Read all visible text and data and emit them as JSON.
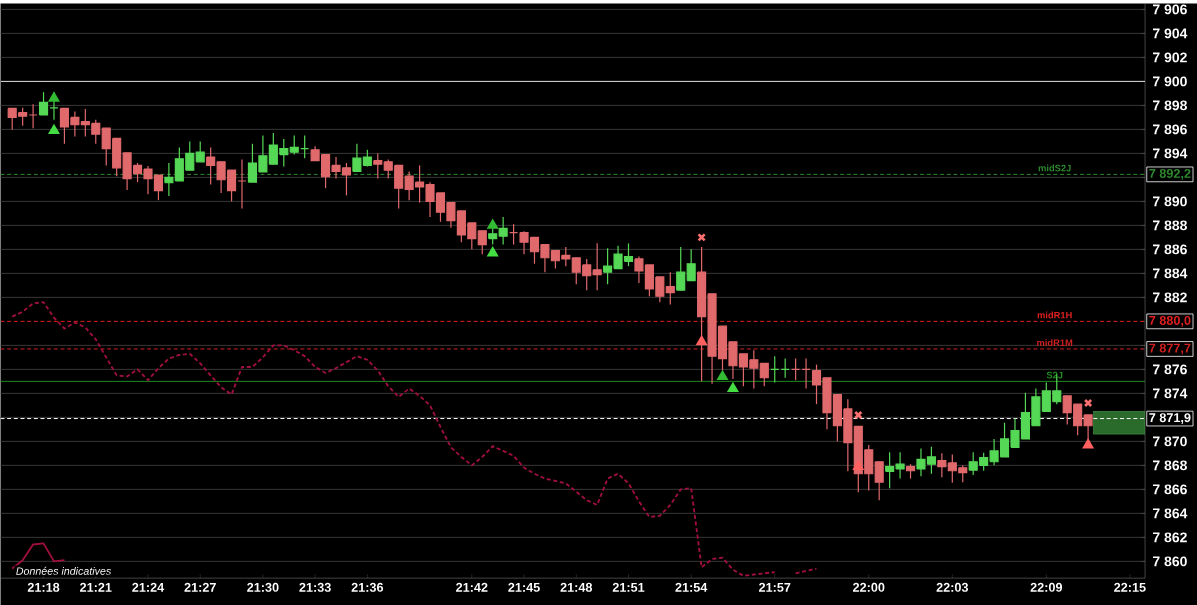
{
  "chart_data": {
    "type": "candlestick",
    "categories": [
      null,
      null,
      null,
      "21:18",
      null,
      null,
      null,
      null,
      "21:21",
      null,
      null,
      null,
      null,
      "21:24",
      null,
      null,
      null,
      null,
      "21:27",
      null,
      null,
      null,
      null,
      null,
      "21:30",
      null,
      null,
      null,
      null,
      "21:33",
      null,
      null,
      null,
      null,
      "21:36",
      null,
      null,
      null,
      null,
      null,
      null,
      null,
      null,
      null,
      "21:42",
      null,
      null,
      null,
      null,
      "21:45",
      null,
      null,
      null,
      null,
      "21:48",
      null,
      null,
      null,
      null,
      "21:51",
      null,
      null,
      null,
      null,
      null,
      "21:54",
      null,
      null,
      null,
      null,
      null,
      null,
      null,
      "21:57",
      null,
      null,
      null,
      null,
      null,
      null,
      null,
      null,
      "22:00",
      null,
      null,
      null,
      null,
      null,
      null,
      null,
      "22:03",
      null,
      null,
      null,
      null,
      null,
      null,
      null,
      null,
      "22:09",
      null,
      null,
      null,
      null,
      null,
      null,
      null,
      "22:15"
    ],
    "ohlc": [
      [
        7897.75,
        7897.75,
        7896.0,
        7897.0
      ],
      [
        7897.4,
        7897.8,
        7896.3,
        7897.1
      ],
      [
        7897.2,
        7898.1,
        7896.1,
        7897.2
      ],
      [
        7897.2,
        7899.1,
        7897.2,
        7898.25
      ],
      [
        7897.8,
        7898.6,
        7896.8,
        7897.8
      ],
      [
        7897.75,
        7897.75,
        7894.8,
        7896.2
      ],
      [
        7897.0,
        7897.5,
        7895.4,
        7896.4
      ],
      [
        7896.65,
        7897.7,
        7895.4,
        7896.4
      ],
      [
        7896.5,
        7896.8,
        7894.8,
        7895.6
      ],
      [
        7896.1,
        7896.1,
        7893.0,
        7894.4
      ],
      [
        7895.25,
        7895.25,
        7892.1,
        7892.8
      ],
      [
        7894.05,
        7894.05,
        7890.95,
        7891.9
      ],
      [
        7893.0,
        7893.2,
        7891.6,
        7892.3
      ],
      [
        7892.7,
        7892.95,
        7890.6,
        7891.9
      ],
      [
        7892.2,
        7892.2,
        7890.1,
        7890.9
      ],
      [
        7891.55,
        7893.2,
        7890.45,
        7892.0
      ],
      [
        7891.7,
        7894.5,
        7891.7,
        7893.55
      ],
      [
        7892.6,
        7895.0,
        7892.6,
        7894.0
      ],
      [
        7893.3,
        7895.0,
        7893.3,
        7894.1
      ],
      [
        7893.7,
        7894.5,
        7891.4,
        7893.0
      ],
      [
        7893.3,
        7893.3,
        7890.7,
        7891.8
      ],
      [
        7892.6,
        7892.6,
        7890.0,
        7890.9
      ],
      [
        7891.7,
        7893.5,
        7889.4,
        7891.7
      ],
      [
        7891.6,
        7894.8,
        7891.6,
        7893.2
      ],
      [
        7892.45,
        7895.5,
        7892.45,
        7893.8
      ],
      [
        7893.1,
        7895.7,
        7893.1,
        7894.7
      ],
      [
        7893.9,
        7895.2,
        7892.9,
        7894.4
      ],
      [
        7894.1,
        7895.5,
        7893.9,
        7894.5
      ],
      [
        7894.4,
        7895.5,
        7893.6,
        7894.4
      ],
      [
        7894.3,
        7894.6,
        7893.4,
        7893.4
      ],
      [
        7893.9,
        7893.9,
        7891.1,
        7892.05
      ],
      [
        7893.0,
        7893.7,
        7891.9,
        7892.5
      ],
      [
        7892.8,
        7893.2,
        7890.5,
        7892.2
      ],
      [
        7892.5,
        7894.8,
        7892.5,
        7893.6
      ],
      [
        7893.0,
        7894.3,
        7892.9,
        7893.7
      ],
      [
        7893.4,
        7894.0,
        7891.9,
        7893.1
      ],
      [
        7893.3,
        7893.5,
        7891.9,
        7892.6
      ],
      [
        7893.0,
        7893.0,
        7889.4,
        7891.1
      ],
      [
        7892.1,
        7892.5,
        7890.1,
        7891.0
      ],
      [
        7891.6,
        7893.0,
        7889.9,
        7891.2
      ],
      [
        7891.4,
        7891.6,
        7888.7,
        7890.0
      ],
      [
        7890.7,
        7890.7,
        7888.3,
        7889.1
      ],
      [
        7889.9,
        7889.9,
        7887.8,
        7888.4
      ],
      [
        7889.2,
        7889.2,
        7886.6,
        7887.2
      ],
      [
        7888.2,
        7888.2,
        7886.0,
        7886.9
      ],
      [
        7887.55,
        7887.55,
        7885.6,
        7886.4
      ],
      [
        7886.9,
        7888.2,
        7886.4,
        7887.3
      ],
      [
        7887.1,
        7888.7,
        7886.4,
        7887.75
      ],
      [
        7887.4,
        7888.1,
        7886.4,
        7887.4
      ],
      [
        7887.4,
        7887.5,
        7885.6,
        7886.6
      ],
      [
        7887.0,
        7887.0,
        7884.8,
        7885.8
      ],
      [
        7886.4,
        7886.4,
        7884.1,
        7885.3
      ],
      [
        7885.9,
        7885.9,
        7884.4,
        7885.05
      ],
      [
        7885.5,
        7886.2,
        7884.6,
        7885.2
      ],
      [
        7885.3,
        7885.3,
        7883.1,
        7884.1
      ],
      [
        7884.7,
        7885.2,
        7882.6,
        7883.8
      ],
      [
        7884.3,
        7886.5,
        7882.6,
        7883.9
      ],
      [
        7884.1,
        7886.1,
        7883.1,
        7884.6
      ],
      [
        7884.4,
        7886.3,
        7884.4,
        7885.6
      ],
      [
        7885.0,
        7886.5,
        7884.6,
        7885.4
      ],
      [
        7885.2,
        7885.4,
        7883.2,
        7884.2
      ],
      [
        7884.7,
        7884.7,
        7882.1,
        7882.7
      ],
      [
        7883.7,
        7883.7,
        7881.6,
        7882.1
      ],
      [
        7882.9,
        7884.1,
        7881.4,
        7882.4
      ],
      [
        7882.6,
        7886.2,
        7882.6,
        7884.1
      ],
      [
        7883.4,
        7886.0,
        7883.4,
        7884.8
      ],
      [
        7884.1,
        7886.2,
        7875.0,
        7880.4
      ],
      [
        7882.3,
        7882.3,
        7874.8,
        7877.1
      ],
      [
        7879.6,
        7879.6,
        7875.9,
        7876.9
      ],
      [
        7878.3,
        7878.3,
        7875.2,
        7876.3
      ],
      [
        7877.3,
        7877.3,
        7874.6,
        7876.2
      ],
      [
        7876.8,
        7877.6,
        7874.4,
        7876.1
      ],
      [
        7876.5,
        7876.5,
        7874.6,
        7875.3
      ],
      [
        7876.0,
        7877.1,
        7874.9,
        7876.0
      ],
      [
        7876.0,
        7876.9,
        7875.3,
        7876.0
      ],
      [
        7876.0,
        7876.9,
        7875.1,
        7876.0
      ],
      [
        7876.0,
        7876.9,
        7874.4,
        7876.0
      ],
      [
        7875.9,
        7876.4,
        7873.1,
        7874.7
      ],
      [
        7875.3,
        7875.3,
        7871.0,
        7872.4
      ],
      [
        7873.9,
        7873.9,
        7870.0,
        7871.3
      ],
      [
        7872.7,
        7873.5,
        7867.5,
        7869.9
      ],
      [
        7871.25,
        7871.25,
        7865.75,
        7867.3
      ],
      [
        7869.3,
        7869.7,
        7865.9,
        7867.3
      ],
      [
        7868.3,
        7868.3,
        7865.1,
        7866.6
      ],
      [
        7867.5,
        7869.1,
        7866.1,
        7867.9
      ],
      [
        7867.7,
        7869.1,
        7866.9,
        7868.1
      ],
      [
        7867.9,
        7868.1,
        7866.9,
        7867.55
      ],
      [
        7867.7,
        7869.4,
        7867.1,
        7868.5
      ],
      [
        7868.1,
        7869.55,
        7867.3,
        7868.7
      ],
      [
        7868.4,
        7869.0,
        7867.0,
        7867.9
      ],
      [
        7868.2,
        7868.9,
        7866.55,
        7867.55
      ],
      [
        7867.8,
        7868.0,
        7866.6,
        7867.4
      ],
      [
        7867.6,
        7869.1,
        7867.2,
        7868.3
      ],
      [
        7868.0,
        7869.05,
        7867.55,
        7868.65
      ],
      [
        7868.3,
        7870.2,
        7868.0,
        7869.2
      ],
      [
        7868.7,
        7871.55,
        7868.7,
        7870.2
      ],
      [
        7869.5,
        7871.9,
        7869.5,
        7870.9
      ],
      [
        7870.2,
        7874.05,
        7870.2,
        7872.4
      ],
      [
        7871.3,
        7874.4,
        7871.3,
        7873.7
      ],
      [
        7872.5,
        7874.9,
        7872.5,
        7874.2
      ],
      [
        7873.3,
        7875.6,
        7873.1,
        7874.2
      ],
      [
        7873.8,
        7873.8,
        7871.4,
        7872.4
      ],
      [
        7873.1,
        7873.1,
        7870.5,
        7871.3
      ],
      [
        7872.2,
        7872.2,
        7870.1,
        7871.3
      ],
      null,
      null,
      null,
      null
    ],
    "colors": [
      "#e0696c",
      "#e0696c",
      "#e0696c",
      "#55d855",
      "#55d855",
      "#e0696c",
      "#e0696c",
      "#e0696c",
      "#e0696c",
      "#e0696c",
      "#e0696c",
      "#e0696c",
      "#e0696c",
      "#e0696c",
      "#e0696c",
      "#55d855",
      "#55d855",
      "#55d855",
      "#55d855",
      "#e0696c",
      "#e0696c",
      "#e0696c",
      "#e0696c",
      "#55d855",
      "#55d855",
      "#55d855",
      "#55d855",
      "#55d855",
      "#55d855",
      "#e0696c",
      "#e0696c",
      "#e0696c",
      "#e0696c",
      "#55d855",
      "#55d855",
      "#e0696c",
      "#e0696c",
      "#e0696c",
      "#e0696c",
      "#e0696c",
      "#e0696c",
      "#e0696c",
      "#e0696c",
      "#e0696c",
      "#e0696c",
      "#e0696c",
      "#55d855",
      "#55d855",
      "#e0696c",
      "#e0696c",
      "#e0696c",
      "#e0696c",
      "#e0696c",
      "#e0696c",
      "#e0696c",
      "#e0696c",
      "#e0696c",
      "#55d855",
      "#55d855",
      "#55d855",
      "#e0696c",
      "#e0696c",
      "#e0696c",
      "#e0696c",
      "#55d855",
      "#55d855",
      "#e0696c",
      "#e0696c",
      "#e0696c",
      "#e0696c",
      "#e0696c",
      "#e0696c",
      "#e0696c",
      "#55d855",
      "#55d855",
      "#e0696c",
      "#e0696c",
      "#e0696c",
      "#e0696c",
      "#e0696c",
      "#e0696c",
      "#e0696c",
      "#e0696c",
      "#e0696c",
      "#55d855",
      "#55d855",
      "#e0696c",
      "#55d855",
      "#55d855",
      "#e0696c",
      "#e0696c",
      "#e0696c",
      "#55d855",
      "#55d855",
      "#55d855",
      "#55d855",
      "#55d855",
      "#55d855",
      "#55d855",
      "#55d855",
      "#55d855",
      "#e0696c",
      "#e0696c",
      "#e0696c",
      null,
      null,
      null,
      null
    ],
    "ylim": [
      7858.6,
      7906.5
    ],
    "yticks": [
      {
        "value": 7860,
        "label": "7 860"
      },
      {
        "value": 7862,
        "label": "7 862"
      },
      {
        "value": 7864,
        "label": "7 864"
      },
      {
        "value": 7866,
        "label": "7 866"
      },
      {
        "value": 7868,
        "label": "7 868"
      },
      {
        "value": 7870,
        "label": "7 870"
      },
      {
        "value": 7871.9,
        "label": "7 871,9"
      },
      {
        "value": 7872,
        "label": null
      },
      {
        "value": 7874,
        "label": "7 874"
      },
      {
        "value": 7876,
        "label": "7 876"
      },
      {
        "value": 7877.7,
        "label": "7 877,7"
      },
      {
        "value": 7878,
        "label": null
      },
      {
        "value": 7880.0,
        "label": "7 880,0"
      },
      {
        "value": 7882,
        "label": "7 882"
      },
      {
        "value": 7884,
        "label": "7 884"
      },
      {
        "value": 7886,
        "label": "7 886"
      },
      {
        "value": 7888,
        "label": "7 888"
      },
      {
        "value": 7890,
        "label": "7 890"
      },
      {
        "value": 7892,
        "label": null
      },
      {
        "value": 7892.25,
        "label": "7 892,2"
      },
      {
        "value": 7894,
        "label": "7 894"
      },
      {
        "value": 7896,
        "label": "7 896"
      },
      {
        "value": 7898,
        "label": "7 898"
      },
      {
        "value": 7900,
        "label": "7 900"
      },
      {
        "value": 7902,
        "label": "7 902"
      },
      {
        "value": 7904,
        "label": "7 904"
      },
      {
        "value": 7906,
        "label": "7 906"
      }
    ],
    "grid": "y",
    "ref_lines": [
      {
        "axis": "y",
        "value": 7900,
        "color": "#e0e0e0",
        "line_style": "solid"
      },
      {
        "axis": "y",
        "value": 7892.25,
        "label": "midS2J",
        "color": "#2e8a2e",
        "line_style": "dashed"
      },
      {
        "axis": "y",
        "value": 7880.0,
        "label": "midR1H",
        "color": "#e02020",
        "line_style": "dashed"
      },
      {
        "axis": "y",
        "value": 7877.7,
        "label": "midR1M",
        "color": "#d02020",
        "line_style": "dashed"
      },
      {
        "axis": "y",
        "value": 7875.0,
        "label": "S2J",
        "color": "#1f8a1f",
        "line_style": "solid"
      },
      {
        "axis": "y",
        "value": 7871.9,
        "color": "#ffffff",
        "line_style": "dashed"
      }
    ],
    "bands": [
      {
        "axis": "y",
        "from": 7870.6,
        "to": 7872.5,
        "color": "#2a6a2a"
      }
    ],
    "annotations": [
      "Données indicatives"
    ],
    "series": [
      {
        "type": "line",
        "color": "#a0103c",
        "line_style": "dashed",
        "values": [
          7880.4,
          7880.8,
          7881.5,
          7881.6,
          7880.3,
          7879.4,
          7879.9,
          7879.5,
          7878.5,
          7877.0,
          7875.5,
          7875.4,
          7876.0,
          7875.1,
          7876.1,
          7876.9,
          7877.2,
          7877.3,
          7876.5,
          7875.5,
          7874.5,
          7873.9,
          7876.2,
          7876.2,
          7877.0,
          7878.0,
          7878.0,
          7877.6,
          7877.1,
          7876.2,
          7875.7,
          7876.1,
          7876.6,
          7877.1,
          7876.8,
          7875.9,
          7874.6,
          7873.7,
          7874.4,
          7873.8,
          7873.0,
          7871.2,
          7869.5,
          7868.7,
          7868.0,
          7868.7,
          7869.6,
          7869.2,
          7868.8,
          7867.8,
          7867.3,
          7866.9,
          7866.7,
          7866.5,
          7865.8,
          7865.1,
          7864.7,
          7866.9,
          7867.3,
          7866.5,
          7865.0,
          7863.7,
          7863.8,
          7864.7,
          7866.0,
          7866.1,
          7859.5,
          7860.2,
          7860.3,
          7859.3,
          7858.8,
          7858.9,
          7859.0,
          7859.1,
          null,
          7859.0,
          7859.2,
          7859.4,
          null,
          null,
          null,
          null,
          null,
          null,
          null,
          null,
          null,
          null,
          null,
          null,
          null,
          null,
          null,
          null,
          null,
          null,
          null,
          null,
          null,
          null,
          null,
          null,
          null,
          null,
          null,
          null,
          null,
          null
        ]
      },
      {
        "type": "line",
        "color": "#a0103c",
        "line_style": "solid",
        "values": [
          7859.4,
          7860.1,
          7861.4,
          7861.5,
          7860.0,
          7860.1,
          null,
          null,
          null,
          null,
          null,
          null,
          null,
          null,
          null,
          null,
          null,
          null,
          null,
          null,
          null,
          null,
          null,
          null,
          null,
          null,
          null,
          null,
          null,
          null,
          null,
          null,
          null,
          null,
          null,
          null,
          null,
          null,
          null,
          null,
          null,
          null,
          null,
          null,
          null,
          null,
          null,
          null,
          null,
          null,
          null,
          null,
          null,
          null,
          null,
          null,
          null,
          null,
          null,
          null,
          null,
          null,
          null,
          null,
          null,
          null,
          null,
          null,
          null,
          null,
          null,
          null,
          null,
          null,
          null,
          null,
          null,
          null,
          null,
          null,
          null,
          null,
          null,
          null,
          null,
          null,
          null,
          null,
          null,
          null,
          null,
          null,
          null,
          null,
          null,
          null,
          null,
          null,
          null,
          null,
          null,
          null,
          null,
          null,
          null,
          null,
          null,
          null
        ]
      },
      {
        "type": "scatter",
        "marker": "triangle",
        "color": "#44dd44",
        "values": [
          null,
          null,
          null,
          null,
          7895.9,
          null,
          null,
          null,
          null,
          null,
          null,
          null,
          null,
          null,
          null,
          null,
          null,
          null,
          null,
          null,
          null,
          null,
          null,
          null,
          null,
          null,
          null,
          null,
          null,
          null,
          null,
          null,
          null,
          null,
          null,
          null,
          null,
          null,
          null,
          null,
          null,
          null,
          null,
          null,
          null,
          null,
          7885.7,
          null,
          null,
          null,
          null,
          null,
          null,
          null,
          null,
          null,
          null,
          null,
          null,
          null,
          null,
          null,
          null,
          null,
          null,
          null,
          null,
          null,
          null,
          7874.4,
          null,
          null,
          null,
          null,
          null,
          null,
          null,
          null,
          null,
          null,
          null,
          null,
          null,
          null,
          null,
          null,
          null,
          null,
          null,
          null,
          null,
          null,
          null,
          null,
          null,
          null,
          null,
          null,
          null,
          null,
          null,
          null,
          null,
          null,
          null,
          null,
          null,
          null
        ]
      },
      {
        "type": "scatter",
        "marker": "cross",
        "color": "#ff7070",
        "values": [
          null,
          null,
          null,
          null,
          null,
          null,
          null,
          null,
          null,
          null,
          null,
          null,
          null,
          null,
          null,
          null,
          null,
          null,
          null,
          null,
          null,
          null,
          null,
          null,
          null,
          null,
          null,
          null,
          null,
          null,
          null,
          null,
          null,
          null,
          null,
          null,
          null,
          null,
          null,
          null,
          null,
          null,
          null,
          null,
          null,
          null,
          null,
          null,
          null,
          null,
          null,
          null,
          null,
          null,
          null,
          null,
          null,
          null,
          null,
          null,
          null,
          null,
          null,
          null,
          null,
          null,
          7887.0,
          null,
          null,
          null,
          null,
          null,
          null,
          null,
          null,
          null,
          null,
          null,
          null,
          null,
          null,
          7872.2,
          null,
          null,
          null,
          null,
          null,
          null,
          null,
          null,
          null,
          null,
          null,
          null,
          null,
          null,
          null,
          null,
          null,
          null,
          null,
          null,
          null,
          7873.2,
          null,
          null,
          null,
          null
        ]
      },
      {
        "type": "scatter",
        "marker": "triangle",
        "color": "#33bb33",
        "values": [
          null,
          null,
          null,
          null,
          7898.6,
          null,
          null,
          null,
          null,
          null,
          null,
          null,
          null,
          null,
          null,
          null,
          null,
          null,
          null,
          null,
          null,
          null,
          null,
          null,
          null,
          null,
          null,
          null,
          null,
          null,
          null,
          null,
          null,
          null,
          null,
          null,
          null,
          null,
          null,
          null,
          null,
          null,
          null,
          null,
          null,
          null,
          7888.0,
          null,
          null,
          null,
          null,
          null,
          null,
          null,
          null,
          null,
          null,
          null,
          null,
          null,
          null,
          null,
          null,
          null,
          null,
          null,
          null,
          null,
          7875.4,
          null,
          null,
          null,
          null,
          null,
          null,
          null,
          null,
          null,
          null,
          null,
          null,
          null,
          null,
          null,
          null,
          null,
          null,
          null,
          null,
          null,
          null,
          null,
          null,
          null,
          null,
          null,
          null,
          null,
          null,
          null,
          null,
          null,
          null,
          null,
          null,
          null,
          null,
          null
        ]
      },
      {
        "type": "scatter",
        "marker": "triangle",
        "color": "#ff6060",
        "values": [
          null,
          null,
          null,
          null,
          null,
          null,
          null,
          null,
          null,
          null,
          null,
          null,
          null,
          null,
          null,
          null,
          null,
          null,
          null,
          null,
          null,
          null,
          null,
          null,
          null,
          null,
          null,
          null,
          null,
          null,
          null,
          null,
          null,
          null,
          null,
          null,
          null,
          null,
          null,
          null,
          null,
          null,
          null,
          null,
          null,
          null,
          null,
          null,
          null,
          null,
          null,
          null,
          null,
          null,
          null,
          null,
          null,
          null,
          null,
          null,
          null,
          null,
          null,
          null,
          null,
          null,
          7878.3,
          null,
          null,
          null,
          null,
          null,
          null,
          null,
          null,
          null,
          null,
          null,
          null,
          null,
          null,
          7867.9,
          null,
          null,
          null,
          null,
          null,
          null,
          null,
          null,
          null,
          null,
          null,
          null,
          null,
          null,
          null,
          null,
          null,
          null,
          null,
          null,
          null,
          7869.7,
          null,
          null,
          null,
          null
        ]
      }
    ]
  }
}
